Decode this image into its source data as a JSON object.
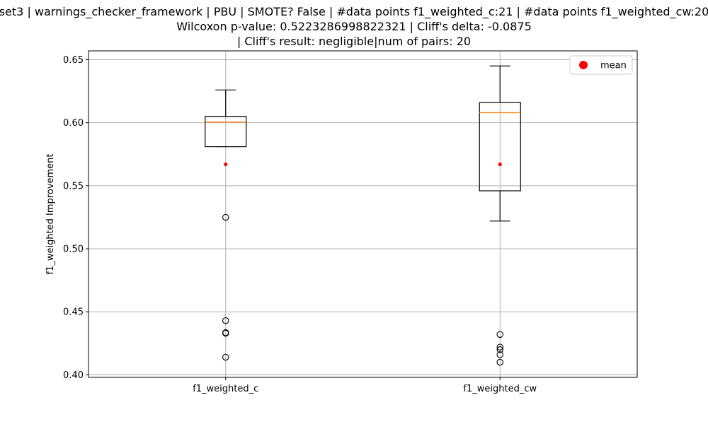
{
  "chart_data": {
    "type": "boxplot",
    "title_lines": [
      "set3 | warnings_checker_framework | PBU | SMOTE? False | #data points f1_weighted_c:21 | #data points f1_weighted_cw:20",
      "Wilcoxon p-value: 0.5223286998822321 | Cliff's delta: -0.0875",
      "| Cliff's result: negligible|num of pairs: 20"
    ],
    "ylabel": "f1_weighted Improvement",
    "xlabel": "",
    "ylim": [
      0.398,
      0.657
    ],
    "yticks": [
      "0.40",
      "0.45",
      "0.50",
      "0.55",
      "0.60",
      "0.65"
    ],
    "ytick_values": [
      0.4,
      0.45,
      0.5,
      0.55,
      0.6,
      0.65
    ],
    "grid": true,
    "legend": {
      "position": "top-right",
      "entries": [
        {
          "label": "mean",
          "color": "#ff0000"
        }
      ]
    },
    "series": [
      {
        "name": "f1_weighted_c",
        "whisker_low": 0.581,
        "q1": 0.581,
        "median": 0.6005,
        "q3": 0.605,
        "whisker_high": 0.626,
        "mean": 0.567,
        "outliers": [
          0.525,
          0.443,
          0.4335,
          0.433,
          0.414
        ]
      },
      {
        "name": "f1_weighted_cw",
        "whisker_low": 0.522,
        "q1": 0.546,
        "median": 0.608,
        "q3": 0.616,
        "whisker_high": 0.645,
        "mean": 0.567,
        "outliers": [
          0.432,
          0.422,
          0.42,
          0.416,
          0.41
        ]
      }
    ],
    "colors": {
      "box": "#000000",
      "median": "#ff7f0e",
      "mean": "#ff0000",
      "grid": "#b0b0b0"
    }
  }
}
